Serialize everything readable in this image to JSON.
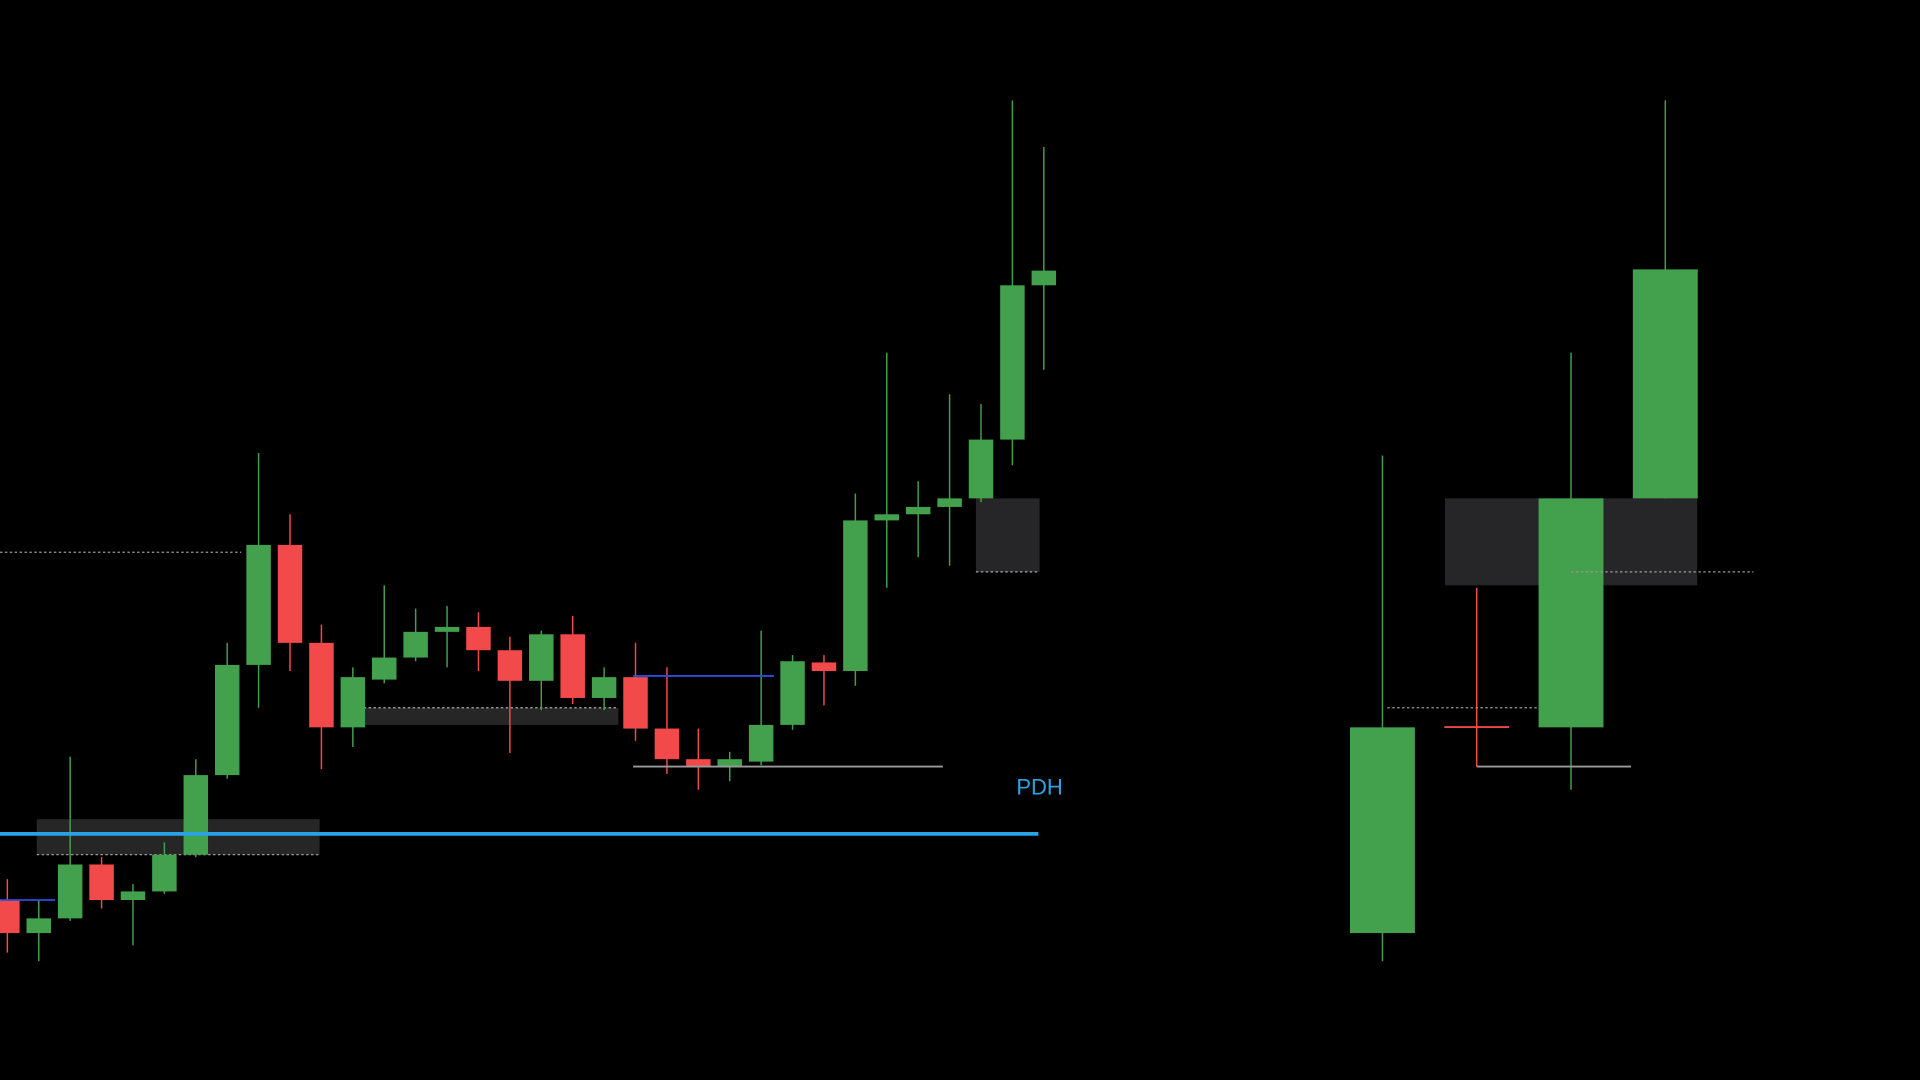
{
  "chart_data": [
    {
      "type": "candlestick",
      "ylim": [
        0,
        882
      ],
      "up_color": "#43a04c",
      "down_color": "#f24a4a",
      "series": [
        {
          "open": [
            147,
            120,
            132,
            176,
            147,
            154,
            184,
            249,
            339,
            437,
            357,
            288,
            327,
            345,
            366,
            370,
            351,
            326,
            364,
            312,
            329,
            287,
            262,
            256,
            260,
            290,
            341,
            334,
            457,
            462,
            468,
            475,
            523,
            649
          ],
          "high": [
            164,
            147,
            264,
            182,
            160,
            194,
            262,
            357,
            512,
            462,
            372,
            337,
            404,
            385,
            387,
            382,
            362,
            367,
            379,
            337,
            357,
            337,
            287,
            268,
            367,
            347,
            347,
            479,
            594,
            489,
            560,
            552,
            800,
            762
          ],
          "low": [
            104,
            97,
            130,
            140,
            110,
            152,
            182,
            246,
            304,
            334,
            254,
            272,
            324,
            342,
            337,
            334,
            267,
            302,
            307,
            302,
            277,
            250,
            237,
            244,
            257,
            286,
            306,
            322,
            402,
            427,
            420,
            472,
            502,
            580
          ],
          "close": [
            120,
            132,
            176,
            147,
            154,
            184,
            249,
            339,
            437,
            357,
            288,
            329,
            345,
            366,
            370,
            351,
            326,
            364,
            312,
            329,
            287,
            262,
            256,
            262,
            290,
            342,
            334,
            457,
            462,
            468,
            475,
            523,
            649,
            661
          ]
        }
      ],
      "lines": [
        {
          "label": "PDH",
          "value": 201,
          "color": "#29a3e6"
        },
        {
          "value": 330,
          "color": "#2b4de0"
        },
        {
          "value": 147,
          "color": "#2b4de0"
        },
        {
          "value": 256,
          "color": "#9a9a9a"
        },
        {
          "value": 431,
          "color": "#9a9a9a",
          "dotted": true
        }
      ],
      "zones": [
        {
          "low": 184,
          "high": 213,
          "color": "#2a2a2a"
        },
        {
          "low": 290,
          "high": 304,
          "color": "#2a2a2a"
        },
        {
          "low": 415,
          "high": 475,
          "color": "#2a2a2c"
        }
      ]
    },
    {
      "type": "candlestick",
      "ylim": [
        0,
        882
      ],
      "up_color": "#43a04c",
      "down_color": "#f24a4a",
      "series": [
        {
          "open": [
            120,
            289,
            288,
            475
          ],
          "high": [
            510,
            402,
            594,
            800
          ],
          "low": [
            97,
            256,
            237,
            475
          ],
          "close": [
            288,
            288,
            475,
            662
          ]
        }
      ],
      "lines": [
        {
          "value": 415,
          "color": "#9a9a9a",
          "dotted": true
        },
        {
          "value": 304,
          "color": "#9a9a9a",
          "dotted": true
        },
        {
          "value": 256,
          "color": "#9a9a9a"
        }
      ],
      "zones": [
        {
          "low": 404,
          "high": 475,
          "color": "#2a2a2c"
        }
      ]
    }
  ]
}
